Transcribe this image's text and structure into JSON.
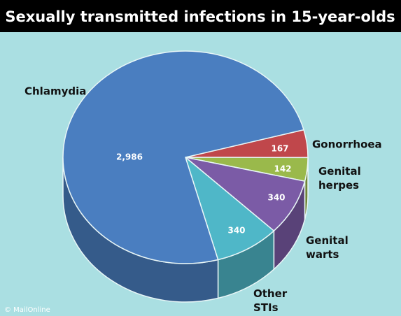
{
  "chart_data": {
    "type": "pie",
    "title": "Sexually transmitted infections in 15-year-olds",
    "categories": [
      "Chlamydia",
      "Gonorrhoea",
      "Genital herpes",
      "Genital warts",
      "Other STIs"
    ],
    "values": [
      2986,
      167,
      142,
      340,
      340
    ],
    "value_labels": [
      "2,986",
      "167",
      "142",
      "340",
      "340"
    ],
    "colors": [
      "#4a7ec0",
      "#c0474b",
      "#9ab94b",
      "#7b5ba6",
      "#4fb7c8"
    ],
    "credit": "© MailOnline"
  }
}
